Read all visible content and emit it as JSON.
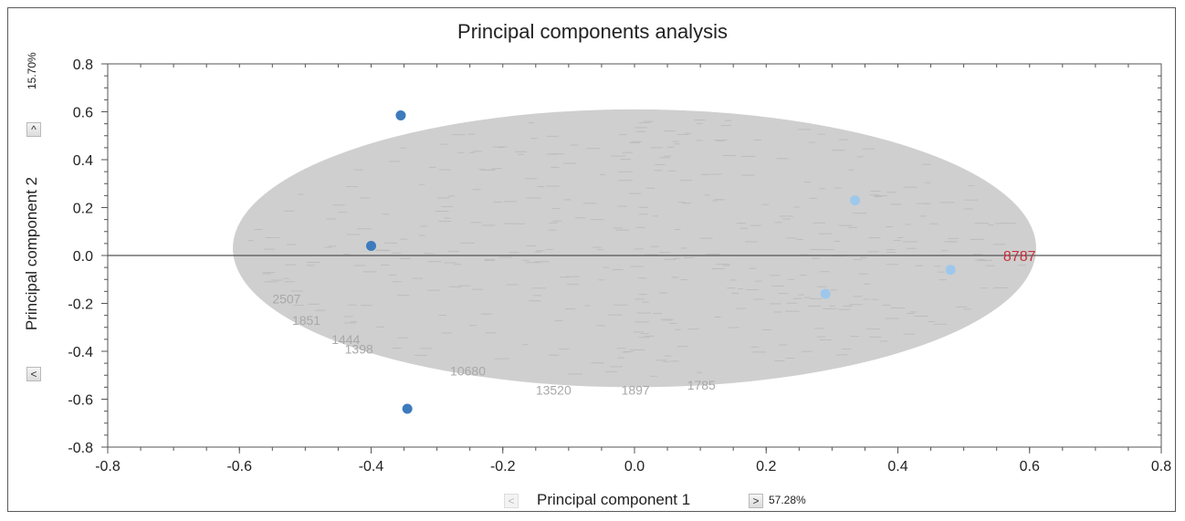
{
  "chart_data": {
    "type": "scatter",
    "title": "Principal components analysis",
    "xlabel": "Principal component 1",
    "ylabel": "Principal component 2",
    "x_variance": "57.28%",
    "y_variance": "15.70%",
    "xlim": [
      -0.8,
      0.8
    ],
    "ylim": [
      -0.8,
      0.8
    ],
    "xticks": [
      "-0.8",
      "-0.6",
      "-0.4",
      "-0.2",
      "0.0",
      "0.2",
      "0.4",
      "0.6",
      "0.8"
    ],
    "yticks": [
      "0.8",
      "0.6",
      "0.4",
      "0.2",
      "0.0",
      "-0.2",
      "-0.4",
      "-0.6",
      "-0.8"
    ],
    "background_cloud": {
      "color": "#cfcfcf",
      "x_range": [
        -0.61,
        0.61
      ],
      "y_range": [
        -0.55,
        0.61
      ],
      "visible_labels": [
        "2507",
        "1851",
        "1444",
        "1398",
        "10680",
        "13520",
        "1897",
        "1785"
      ]
    },
    "zero_line": {
      "y": 0.0,
      "color": "#555555"
    },
    "series": [
      {
        "color": "#3d7bbd",
        "points": [
          [
            -0.355,
            0.585
          ],
          [
            -0.4,
            0.04
          ],
          [
            -0.345,
            -0.64
          ]
        ]
      },
      {
        "color": "#9dc8ec",
        "points": [
          [
            0.335,
            0.23
          ],
          [
            0.29,
            -0.16
          ],
          [
            0.48,
            -0.06
          ]
        ]
      }
    ],
    "annotations": [
      {
        "text": "8787",
        "x": 0.56,
        "y": 0.0,
        "color": "#c8313a"
      }
    ]
  },
  "controls": {
    "prev": "<",
    "next": ">",
    "up": "^"
  }
}
